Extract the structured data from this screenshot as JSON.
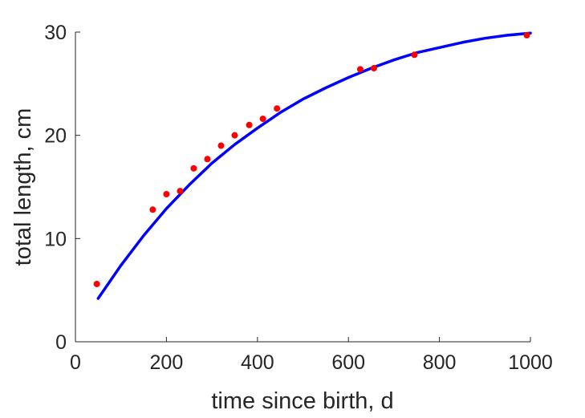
{
  "chart_data": {
    "type": "scatter",
    "xlabel": "time since birth, d",
    "ylabel": "total length, cm",
    "xlim": [
      0,
      1000
    ],
    "ylim": [
      0,
      30
    ],
    "xticks": [
      0,
      200,
      400,
      600,
      800,
      1000
    ],
    "yticks": [
      0,
      10,
      20,
      30
    ],
    "grid": false,
    "series": [
      {
        "kind": "points",
        "color": "#ff0000",
        "x": [
          47,
          170,
          200,
          230,
          260,
          290,
          320,
          350,
          382,
          412,
          443,
          626,
          656,
          745,
          992
        ],
        "y": [
          5.6,
          12.8,
          14.3,
          14.6,
          16.8,
          17.7,
          19.0,
          20.0,
          21.0,
          21.6,
          22.6,
          26.4,
          26.5,
          27.8,
          29.7
        ]
      },
      {
        "kind": "line",
        "color": "#0000ff",
        "x": [
          50,
          100,
          150,
          200,
          250,
          300,
          350,
          400,
          450,
          500,
          550,
          600,
          650,
          700,
          750,
          800,
          850,
          900,
          950,
          1000
        ],
        "y": [
          4.2,
          7.4,
          10.3,
          12.9,
          15.2,
          17.3,
          19.1,
          20.7,
          22.2,
          23.5,
          24.6,
          25.6,
          26.5,
          27.3,
          28.0,
          28.5,
          29.0,
          29.4,
          29.7,
          29.9
        ]
      }
    ]
  }
}
